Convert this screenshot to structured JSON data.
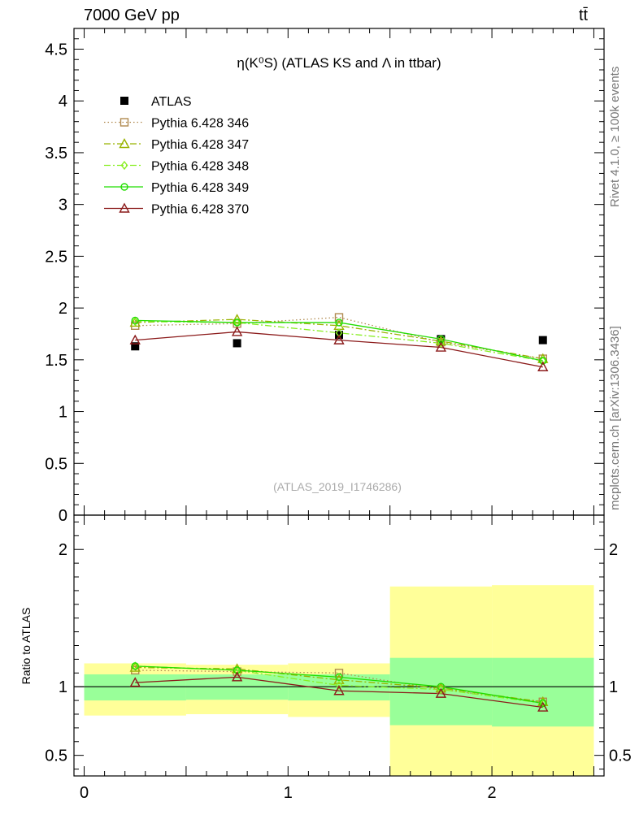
{
  "header": {
    "energy_label": "7000 GeV pp",
    "process_label": "tt̄"
  },
  "side_labels": {
    "rivet": "Rivet 4.1.0, ≥ 100k events",
    "source": "mcplots.cern.ch [arXiv:1306.3436]"
  },
  "chart_data": [
    {
      "type": "line",
      "panel": "main",
      "title": "η(K⁰S) (ATLAS KS and Λ in ttbar)",
      "watermark": "(ATLAS_2019_I1746286)",
      "xlabel": "",
      "ylabel": "",
      "xlim": [
        -0.05,
        2.55
      ],
      "ylim": [
        0,
        4.7
      ],
      "y_ticks": [
        0,
        0.5,
        1,
        1.5,
        2,
        2.5,
        3,
        3.5,
        4,
        4.5
      ],
      "y_tick_labels": [
        "0",
        "0.5",
        "1",
        "1.5",
        "2",
        "2.5",
        "3",
        "3.5",
        "4",
        "4.5"
      ],
      "x": [
        0.25,
        0.75,
        1.25,
        1.75,
        2.25
      ],
      "series": [
        {
          "name": "ATLAS",
          "style": "data",
          "color": "#000000",
          "values": [
            1.63,
            1.66,
            1.74,
            1.7,
            1.69
          ]
        },
        {
          "name": "Pythia 6.428 346",
          "style": "dotted",
          "marker": "square",
          "color": "#b08a50",
          "values": [
            1.83,
            1.85,
            1.91,
            1.67,
            1.51
          ]
        },
        {
          "name": "Pythia 6.428 347",
          "style": "dashdot",
          "marker": "triangle",
          "color": "#99b300",
          "values": [
            1.86,
            1.89,
            1.83,
            1.68,
            1.51
          ]
        },
        {
          "name": "Pythia 6.428 348",
          "style": "dashdot",
          "marker": "diamond",
          "color": "#88ee22",
          "values": [
            1.87,
            1.86,
            1.76,
            1.66,
            1.49
          ]
        },
        {
          "name": "Pythia 6.428 349",
          "style": "solid",
          "marker": "circle",
          "color": "#22dd00",
          "values": [
            1.88,
            1.86,
            1.86,
            1.7,
            1.49
          ]
        },
        {
          "name": "Pythia 6.428 370",
          "style": "solid",
          "marker": "triangle",
          "color": "#8b1a1a",
          "values": [
            1.69,
            1.77,
            1.69,
            1.62,
            1.43
          ]
        }
      ]
    },
    {
      "type": "line",
      "panel": "ratio",
      "title": "",
      "xlabel": "",
      "ylabel": "Ratio to ATLAS",
      "xlim": [
        -0.05,
        2.55
      ],
      "ylim": [
        0.35,
        2.25
      ],
      "x_ticks": [
        0,
        1,
        2
      ],
      "x_tick_labels": [
        "0",
        "1",
        "2"
      ],
      "y_ticks": [
        0.5,
        1,
        2
      ],
      "y_tick_labels": [
        "0.5",
        "1",
        "2"
      ],
      "x": [
        0.25,
        0.75,
        1.25,
        1.75,
        2.25
      ],
      "bands": [
        {
          "x_range": [
            0,
            0.5
          ],
          "inner": [
            0.9,
            1.09
          ],
          "outer": [
            0.79,
            1.17
          ]
        },
        {
          "x_range": [
            0.5,
            1.0
          ],
          "inner": [
            0.905,
            1.09
          ],
          "outer": [
            0.8,
            1.16
          ]
        },
        {
          "x_range": [
            1.0,
            1.5
          ],
          "inner": [
            0.9,
            1.09
          ],
          "outer": [
            0.78,
            1.17
          ]
        },
        {
          "x_range": [
            1.5,
            2.0
          ],
          "inner": [
            0.72,
            1.21
          ],
          "outer": [
            0.35,
            1.73
          ]
        },
        {
          "x_range": [
            2.0,
            2.5
          ],
          "inner": [
            0.71,
            1.21
          ],
          "outer": [
            0.35,
            1.74
          ]
        }
      ],
      "band_colors": {
        "inner": "#99ff99",
        "outer": "#ffff99"
      },
      "reference_value": 1,
      "series": [
        {
          "name": "Pythia 6.428 346",
          "style": "dotted",
          "marker": "square",
          "color": "#b08a50",
          "values": [
            1.12,
            1.11,
            1.1,
            0.98,
            0.89
          ]
        },
        {
          "name": "Pythia 6.428 347",
          "style": "dashdot",
          "marker": "triangle",
          "color": "#99b300",
          "values": [
            1.14,
            1.13,
            1.05,
            0.99,
            0.89
          ]
        },
        {
          "name": "Pythia 6.428 348",
          "style": "dashdot",
          "marker": "diamond",
          "color": "#88ee22",
          "values": [
            1.15,
            1.12,
            1.01,
            0.98,
            0.88
          ]
        },
        {
          "name": "Pythia 6.428 349",
          "style": "solid",
          "marker": "circle",
          "color": "#22dd00",
          "values": [
            1.15,
            1.12,
            1.07,
            1.0,
            0.88
          ]
        },
        {
          "name": "Pythia 6.428 370",
          "style": "solid",
          "marker": "triangle",
          "color": "#8b1a1a",
          "values": [
            1.03,
            1.07,
            0.97,
            0.95,
            0.85
          ]
        }
      ]
    }
  ]
}
